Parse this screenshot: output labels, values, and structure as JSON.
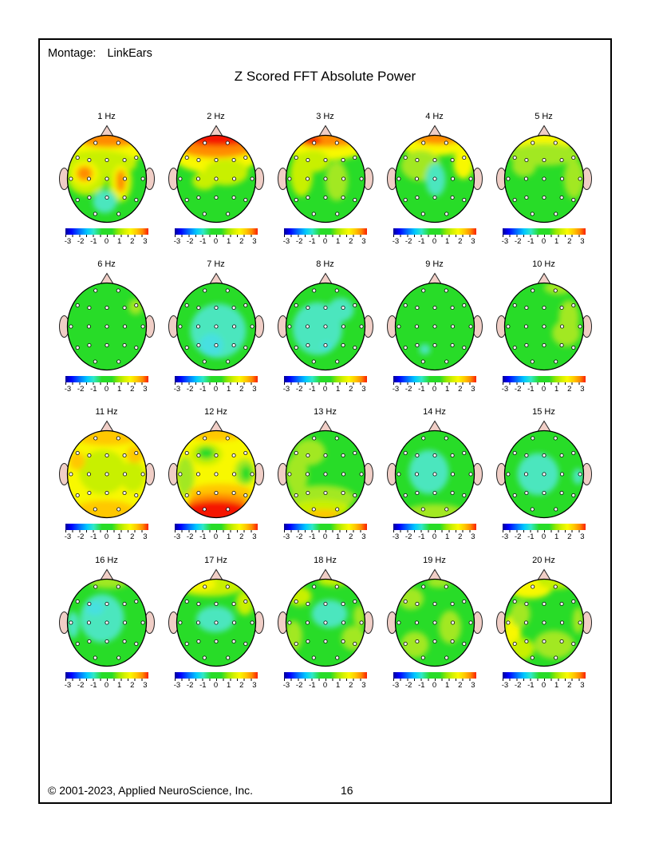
{
  "page": {
    "montage_label": "Montage:",
    "montage_value": "LinkEars",
    "title": "Z Scored FFT Absolute Power",
    "footer": {
      "copyright": "© 2001-2023, Applied NeuroScience, Inc.",
      "page_number": "16"
    }
  },
  "colorbar": {
    "tick_labels": [
      "-3",
      "-2",
      "-1",
      "0",
      "1",
      "2",
      "3"
    ],
    "gradient_stops": [
      "#000096 0%",
      "#0000FF 7%",
      "#0064FF 16%",
      "#00C8FF 26%",
      "#30E8C8 34%",
      "#28DC28 44%",
      "#28DC28 56%",
      "#96E800 64%",
      "#D2F000 71%",
      "#FAFA00 78%",
      "#FFC800 86%",
      "#FF8C00 93%",
      "#FA1E00 100%"
    ]
  },
  "palette": {
    "skin": "#F0CEC6",
    "outline": "#000000",
    "green": "#28DC28",
    "lightgreen": "#A2E824",
    "yellowgreen": "#C8F000",
    "yellow": "#F8F800",
    "amber": "#FFC800",
    "orange": "#FF8C00",
    "red": "#F51400",
    "teal": "#4CE6BE",
    "cyan": "#46E0E0"
  },
  "electrodes": {
    "names": [
      "Fp1",
      "Fp2",
      "F7",
      "F3",
      "Fz",
      "F4",
      "F8",
      "T3",
      "C3",
      "Cz",
      "C4",
      "T4",
      "T5",
      "P3",
      "Pz",
      "P4",
      "T6",
      "O1",
      "O2"
    ],
    "positions": [
      [
        -0.31,
        -0.9
      ],
      [
        0.31,
        -0.9
      ],
      [
        -0.8,
        -0.53
      ],
      [
        -0.48,
        -0.47
      ],
      [
        0,
        -0.47
      ],
      [
        0.48,
        -0.47
      ],
      [
        0.8,
        -0.53
      ],
      [
        -0.98,
        0
      ],
      [
        -0.49,
        0
      ],
      [
        0,
        0
      ],
      [
        0.49,
        0
      ],
      [
        0.98,
        0
      ],
      [
        -0.8,
        0.53
      ],
      [
        -0.48,
        0.47
      ],
      [
        0,
        0.47
      ],
      [
        0.48,
        0.47
      ],
      [
        0.8,
        0.53
      ],
      [
        -0.32,
        0.88
      ],
      [
        0.32,
        0.88
      ]
    ]
  },
  "chart_data": {
    "type": "heatmap",
    "subtype": "eeg_topomap_grid",
    "title": "Z Scored FFT Absolute Power",
    "value_scale": {
      "min": -3,
      "max": 3,
      "unit": "z-score"
    },
    "grid": {
      "rows": 4,
      "cols": 5
    },
    "maps": [
      {
        "label": "1 Hz",
        "freq_hz": 1,
        "base": "green",
        "blobs": [
          [
            0,
            -0.68,
            1.05,
            0.32,
            "yellow"
          ],
          [
            0.05,
            -0.92,
            0.8,
            0.2,
            "orange"
          ],
          [
            -0.2,
            -0.35,
            0.95,
            0.3,
            "yellowgreen"
          ],
          [
            -0.5,
            -0.05,
            0.5,
            0.42,
            "yellowgreen"
          ],
          [
            0.33,
            0.05,
            0.3,
            0.48,
            "yellowgreen"
          ],
          [
            -0.55,
            -0.12,
            0.33,
            0.28,
            "yellow"
          ],
          [
            -0.56,
            -0.12,
            0.2,
            0.17,
            "orange"
          ],
          [
            0.34,
            0.05,
            0.2,
            0.36,
            "yellow"
          ],
          [
            0.35,
            0.05,
            0.12,
            0.26,
            "orange"
          ],
          [
            -0.05,
            0.52,
            0.3,
            0.26,
            "teal"
          ]
        ]
      },
      {
        "label": "2 Hz",
        "freq_hz": 2,
        "base": "green",
        "blobs": [
          [
            0,
            -0.5,
            1.05,
            0.38,
            "yellow"
          ],
          [
            0,
            -0.74,
            1.0,
            0.26,
            "orange"
          ],
          [
            0.05,
            -0.93,
            0.85,
            0.18,
            "red"
          ],
          [
            0.25,
            -0.15,
            0.55,
            0.3,
            "yellowgreen"
          ],
          [
            -0.3,
            0.05,
            0.3,
            0.2,
            "yellowgreen"
          ]
        ]
      },
      {
        "label": "3 Hz",
        "freq_hz": 3,
        "base": "green",
        "blobs": [
          [
            0,
            -0.72,
            1.0,
            0.3,
            "yellow"
          ],
          [
            0,
            -0.9,
            0.85,
            0.18,
            "orange"
          ],
          [
            -0.33,
            -0.87,
            0.22,
            0.1,
            "red"
          ],
          [
            -0.6,
            -0.1,
            0.28,
            0.5,
            "yellowgreen"
          ],
          [
            -0.3,
            -0.4,
            0.4,
            0.25,
            "yellowgreen"
          ],
          [
            0.28,
            0.05,
            0.28,
            0.45,
            "lightgreen"
          ]
        ]
      },
      {
        "label": "4 Hz",
        "freq_hz": 4,
        "base": "green",
        "blobs": [
          [
            0,
            -0.78,
            0.9,
            0.25,
            "yellow"
          ],
          [
            0.08,
            -0.93,
            0.6,
            0.15,
            "orange"
          ],
          [
            0.72,
            -0.35,
            0.25,
            0.35,
            "yellow"
          ],
          [
            -0.35,
            -0.3,
            0.5,
            0.35,
            "lightgreen"
          ],
          [
            0.02,
            0.02,
            0.25,
            0.38,
            "teal"
          ]
        ]
      },
      {
        "label": "5 Hz",
        "freq_hz": 5,
        "base": "green",
        "blobs": [
          [
            -0.05,
            -0.85,
            0.8,
            0.22,
            "yellow"
          ],
          [
            0,
            -0.55,
            0.9,
            0.25,
            "lightgreen"
          ],
          [
            0.75,
            0,
            0.25,
            0.45,
            "lightgreen"
          ],
          [
            -0.5,
            -0.3,
            0.3,
            0.25,
            "lightgreen"
          ]
        ]
      },
      {
        "label": "6 Hz",
        "freq_hz": 6,
        "base": "green",
        "blobs": [
          [
            0.72,
            -0.45,
            0.18,
            0.18,
            "lightgreen"
          ]
        ]
      },
      {
        "label": "7 Hz",
        "freq_hz": 7,
        "base": "green",
        "blobs": [
          [
            0.05,
            0.1,
            0.7,
            0.62,
            "teal"
          ],
          [
            -0.12,
            0.42,
            0.3,
            0.26,
            "cyan"
          ]
        ]
      },
      {
        "label": "8 Hz",
        "freq_hz": 8,
        "base": "green",
        "blobs": [
          [
            -0.2,
            0.05,
            0.62,
            0.6,
            "teal"
          ],
          [
            0.38,
            -0.38,
            0.33,
            0.27,
            "teal"
          ],
          [
            0.02,
            0.45,
            0.12,
            0.1,
            "cyan"
          ]
        ]
      },
      {
        "label": "9 Hz",
        "freq_hz": 9,
        "base": "green",
        "blobs": [
          [
            -0.25,
            0.52,
            0.14,
            0.12,
            "teal"
          ]
        ]
      },
      {
        "label": "10 Hz",
        "freq_hz": 10,
        "base": "green",
        "blobs": [
          [
            0.35,
            -0.88,
            0.35,
            0.15,
            "lightgreen"
          ],
          [
            0.62,
            -0.2,
            0.25,
            0.4,
            "lightgreen"
          ],
          [
            0.55,
            0.15,
            0.35,
            0.3,
            "lightgreen"
          ]
        ]
      },
      {
        "label": "11 Hz",
        "freq_hz": 11,
        "base": "yellow",
        "blobs": [
          [
            -0.1,
            -0.05,
            0.6,
            0.5,
            "yellowgreen"
          ],
          [
            0.65,
            0.05,
            0.3,
            0.35,
            "yellowgreen"
          ],
          [
            0,
            -0.88,
            0.85,
            0.22,
            "amber"
          ],
          [
            -0.05,
            0.85,
            0.8,
            0.25,
            "amber"
          ],
          [
            -0.75,
            -0.3,
            0.2,
            0.2,
            "amber"
          ],
          [
            0.7,
            -0.45,
            0.2,
            0.2,
            "amber"
          ]
        ]
      },
      {
        "label": "12 Hz",
        "freq_hz": 12,
        "base": "yellow",
        "blobs": [
          [
            -0.25,
            -0.45,
            0.4,
            0.25,
            "yellowgreen"
          ],
          [
            -0.25,
            -0.48,
            0.22,
            0.14,
            "green"
          ],
          [
            -0.78,
            0.05,
            0.22,
            0.45,
            "lightgreen"
          ],
          [
            0.72,
            -0.05,
            0.25,
            0.3,
            "lightgreen"
          ],
          [
            0.75,
            -0.02,
            0.14,
            0.18,
            "green"
          ],
          [
            0,
            -0.92,
            0.7,
            0.16,
            "amber"
          ],
          [
            0.1,
            0.42,
            0.8,
            0.2,
            "amber"
          ],
          [
            0.05,
            0.62,
            0.75,
            0.18,
            "orange"
          ],
          [
            0,
            0.85,
            0.85,
            0.25,
            "red"
          ]
        ]
      },
      {
        "label": "13 Hz",
        "freq_hz": 13,
        "base": "green",
        "blobs": [
          [
            -0.4,
            -0.5,
            0.4,
            0.3,
            "lightgreen"
          ],
          [
            -0.72,
            0,
            0.28,
            0.45,
            "lightgreen"
          ],
          [
            -0.1,
            0.55,
            0.85,
            0.3,
            "lightgreen"
          ],
          [
            -0.1,
            0.78,
            0.7,
            0.2,
            "yellowgreen"
          ],
          [
            -0.05,
            0.92,
            0.45,
            0.12,
            "amber"
          ]
        ]
      },
      {
        "label": "14 Hz",
        "freq_hz": 14,
        "base": "green",
        "blobs": [
          [
            -0.15,
            -0.05,
            0.5,
            0.5,
            "teal"
          ],
          [
            0,
            0.88,
            0.75,
            0.2,
            "lightgreen"
          ]
        ]
      },
      {
        "label": "15 Hz",
        "freq_hz": 15,
        "base": "green",
        "blobs": [
          [
            -0.15,
            0,
            0.52,
            0.48,
            "teal"
          ],
          [
            0.85,
            0.05,
            0.13,
            0.18,
            "teal"
          ]
        ]
      },
      {
        "label": "16 Hz",
        "freq_hz": 16,
        "base": "green",
        "blobs": [
          [
            -0.12,
            -0.1,
            0.55,
            0.55,
            "teal"
          ],
          [
            -0.3,
            -0.33,
            0.22,
            0.16,
            "cyan"
          ],
          [
            0.05,
            -0.92,
            0.5,
            0.14,
            "lightgreen"
          ],
          [
            -0.85,
            0.05,
            0.15,
            0.3,
            "teal"
          ]
        ]
      },
      {
        "label": "17 Hz",
        "freq_hz": 17,
        "base": "green",
        "blobs": [
          [
            -0.15,
            -0.85,
            0.85,
            0.25,
            "yellowgreen"
          ],
          [
            -0.4,
            -0.88,
            0.4,
            0.15,
            "yellow"
          ],
          [
            0.72,
            -0.45,
            0.22,
            0.28,
            "yellowgreen"
          ],
          [
            -0.02,
            -0.08,
            0.48,
            0.3,
            "teal"
          ]
        ]
      },
      {
        "label": "18 Hz",
        "freq_hz": 18,
        "base": "green",
        "blobs": [
          [
            0.1,
            -0.2,
            0.45,
            0.32,
            "teal"
          ],
          [
            -0.65,
            -0.6,
            0.3,
            0.22,
            "yellowgreen"
          ],
          [
            0.2,
            -0.95,
            0.4,
            0.12,
            "yellowgreen"
          ],
          [
            -0.8,
            0.3,
            0.22,
            0.35,
            "lightgreen"
          ],
          [
            0.7,
            0.35,
            0.3,
            0.28,
            "lightgreen"
          ],
          [
            0.85,
            -0.15,
            0.15,
            0.25,
            "lightgreen"
          ]
        ]
      },
      {
        "label": "19 Hz",
        "freq_hz": 19,
        "base": "green",
        "blobs": [
          [
            -0.6,
            -0.55,
            0.32,
            0.25,
            "lightgreen"
          ],
          [
            0.38,
            0.1,
            0.28,
            0.38,
            "lightgreen"
          ],
          [
            -0.5,
            0.5,
            0.35,
            0.3,
            "lightgreen"
          ],
          [
            0.1,
            -0.92,
            0.3,
            0.12,
            "lightgreen"
          ]
        ]
      },
      {
        "label": "20 Hz",
        "freq_hz": 20,
        "base": "green",
        "blobs": [
          [
            -0.35,
            -0.8,
            0.55,
            0.25,
            "yellow"
          ],
          [
            0.3,
            -0.92,
            0.45,
            0.15,
            "yellowgreen"
          ],
          [
            -0.8,
            0.25,
            0.22,
            0.45,
            "yellow"
          ],
          [
            -0.55,
            0.6,
            0.3,
            0.25,
            "yellowgreen"
          ],
          [
            0.25,
            0.5,
            0.5,
            0.32,
            "lightgreen"
          ],
          [
            0.85,
            -0.05,
            0.13,
            0.3,
            "lightgreen"
          ],
          [
            -0.6,
            -0.2,
            0.25,
            0.3,
            "lightgreen"
          ]
        ]
      }
    ]
  }
}
